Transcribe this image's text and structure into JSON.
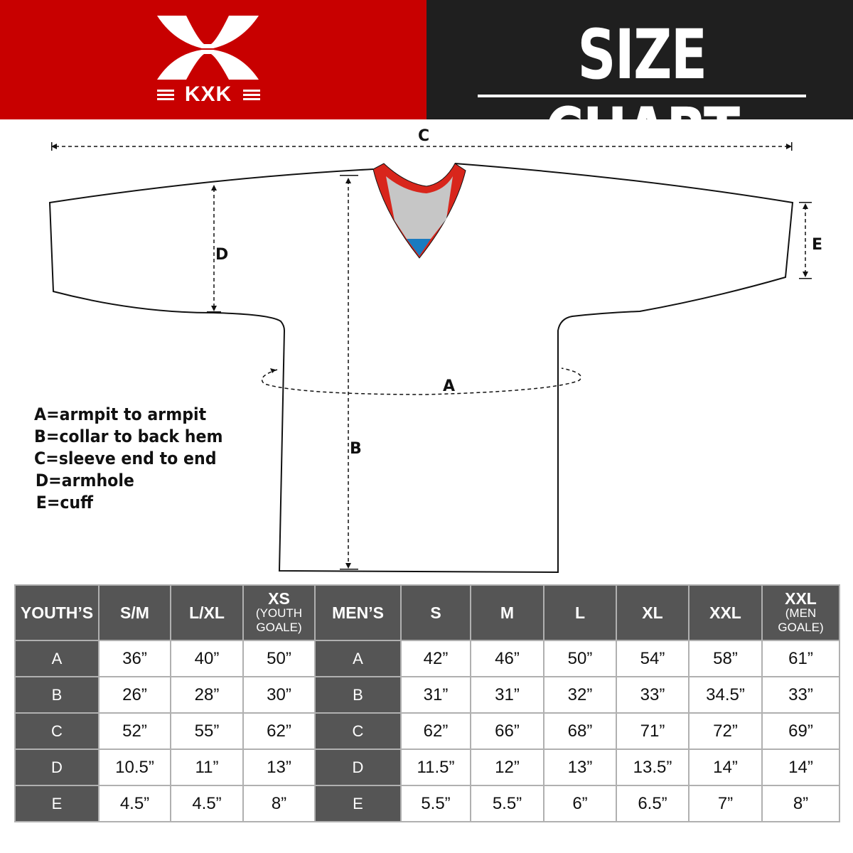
{
  "brand": {
    "logo_text": "KXK",
    "colors": {
      "red": "#c80000",
      "dark": "#1f1f1f",
      "table_header": "#555555"
    }
  },
  "title": "SIZE CHART",
  "diagram": {
    "labels": {
      "A": "A",
      "B": "B",
      "C": "C",
      "D": "D",
      "E": "E"
    }
  },
  "legend": [
    "A=armpit to armpit",
    "B=collar to back hem",
    "C=sleeve end to end",
    "D=armhole",
    "E=cuff"
  ],
  "table": {
    "youth": {
      "header": "YOUTH’S",
      "sizes": [
        {
          "label": "S/M",
          "sub": ""
        },
        {
          "label": "L/XL",
          "sub": ""
        },
        {
          "label": "XS",
          "sub": "(YOUTH GOALE)"
        }
      ]
    },
    "men": {
      "header": "MEN’S",
      "sizes": [
        {
          "label": "S",
          "sub": ""
        },
        {
          "label": "M",
          "sub": ""
        },
        {
          "label": "L",
          "sub": ""
        },
        {
          "label": "XL",
          "sub": ""
        },
        {
          "label": "XXL",
          "sub": ""
        },
        {
          "label": "XXL",
          "sub": "(MEN GOALE)"
        }
      ]
    },
    "rows": [
      {
        "label": "A",
        "youth": [
          "36”",
          "40”",
          "50”"
        ],
        "men": [
          "42”",
          "46”",
          "50”",
          "54”",
          "58”",
          "61”"
        ]
      },
      {
        "label": "B",
        "youth": [
          "26”",
          "28”",
          "30”"
        ],
        "men": [
          "31”",
          "31”",
          "32”",
          "33”",
          "34.5”",
          "33”"
        ]
      },
      {
        "label": "C",
        "youth": [
          "52”",
          "55”",
          "62”"
        ],
        "men": [
          "62”",
          "66”",
          "68”",
          "71”",
          "72”",
          "69”"
        ]
      },
      {
        "label": "D",
        "youth": [
          "10.5”",
          "11”",
          "13”"
        ],
        "men": [
          "11.5”",
          "12”",
          "13”",
          "13.5”",
          "14”",
          "14”"
        ]
      },
      {
        "label": "E",
        "youth": [
          "4.5”",
          "4.5”",
          "8”"
        ],
        "men": [
          "5.5”",
          "5.5”",
          "6”",
          "6.5”",
          "7”",
          "8”"
        ]
      }
    ]
  }
}
